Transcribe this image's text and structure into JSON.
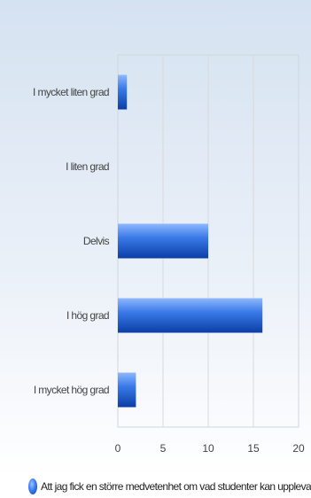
{
  "chart_data": {
    "type": "bar",
    "orientation": "horizontal",
    "categories": [
      "I mycket liten grad",
      "I liten grad",
      "Delvis",
      "I hög grad",
      "I mycket hög grad"
    ],
    "series": [
      {
        "name": "Att jag fick en större medvetenhet om vad studenter kan uppleva und",
        "values": [
          1,
          0,
          10,
          16,
          2
        ]
      }
    ],
    "xticks": [
      "0",
      "5",
      "10",
      "15",
      "20"
    ],
    "xlim": [
      0,
      20
    ],
    "grid": true,
    "legend_position": "bottom",
    "colors": {
      "bar_light": "#8fb8ff",
      "bar_mid": "#3a7ae8",
      "bar_dark": "#0b3ea6",
      "background_top": "#d7e3f1",
      "background_bottom": "#ffffff",
      "gridline": "#d9d9d9"
    }
  }
}
